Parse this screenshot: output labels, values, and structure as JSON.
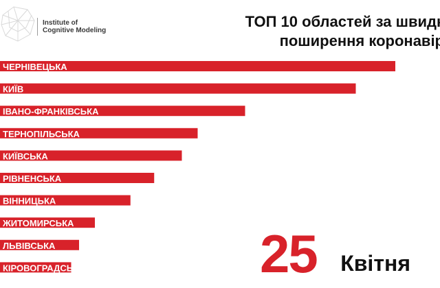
{
  "logo": {
    "line1": "Institute of",
    "line2": "Cognitive Modeling"
  },
  "title": {
    "line1": "ТОП 10 областей за швидк",
    "line2": "поширення коронавір"
  },
  "date": {
    "day": "25",
    "month": "Квітня"
  },
  "colors": {
    "bar": "#d8222a",
    "day": "#d8222a",
    "label": "#ffffff"
  },
  "chart_data": {
    "type": "bar",
    "orientation": "horizontal",
    "categories": [
      "ЧЕРНІВЕЦЬКА",
      "КИЇВ",
      "ІВАНО-ФРАНКІВСЬКА",
      "ТЕРНОПІЛЬСЬКА",
      "КИЇВСЬКА",
      "РІВНЕНСЬКА",
      "ВІННИЦЬКА",
      "ЖИТОМИРСЬКА",
      "ЛЬВІВСЬКА",
      "КІРОВОГРАДСЬКА"
    ],
    "values": [
      100,
      90,
      62,
      50,
      46,
      39,
      33,
      24,
      20,
      18
    ],
    "value_scale": "relative, longest bar = 100",
    "title": "ТОП 10 областей за швидк поширення коронавір",
    "xlabel": "",
    "ylabel": "",
    "xlim": [
      0,
      100
    ],
    "grid": false,
    "legend": "none"
  }
}
